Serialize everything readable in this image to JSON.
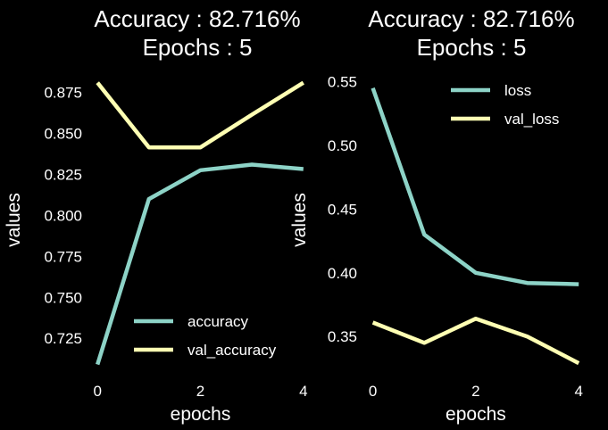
{
  "colors": {
    "background": "#000000",
    "text": "#ffffff",
    "series_teal": "#8dd3c7",
    "series_yellow": "#feffb3"
  },
  "chart_data": [
    {
      "type": "line",
      "title": "Accuracy : 82.716%",
      "subtitle": "Epochs : 5",
      "xlabel": "epochs",
      "ylabel": "values",
      "x": [
        0,
        1,
        2,
        3,
        4
      ],
      "xticks": [
        0,
        2,
        4
      ],
      "xticklabels": [
        "0",
        "2",
        "4"
      ],
      "yticks": [
        0.725,
        0.75,
        0.775,
        0.8,
        0.825,
        0.85,
        0.875
      ],
      "yticklabels": [
        "0.725",
        "0.750",
        "0.775",
        "0.800",
        "0.825",
        "0.850",
        "0.875"
      ],
      "xlim": [
        -0.05,
        4.05
      ],
      "ylim": [
        0.7055,
        0.889
      ],
      "grid": false,
      "legend_position": "lower-right",
      "series": [
        {
          "name": "accuracy",
          "color": "#8dd3c7",
          "values": [
            0.709,
            0.81,
            0.8276,
            0.831,
            0.8283
          ]
        },
        {
          "name": "val_accuracy",
          "color": "#feffb3",
          "values": [
            0.881,
            0.8415,
            0.8415,
            0.8615,
            0.881
          ]
        }
      ]
    },
    {
      "type": "line",
      "title": "Accuracy : 82.716%",
      "subtitle": "Epochs : 5",
      "xlabel": "epochs",
      "ylabel": "values",
      "x": [
        0,
        1,
        2,
        3,
        4
      ],
      "xticks": [
        0,
        2,
        4
      ],
      "xticklabels": [
        "0",
        "2",
        "4"
      ],
      "yticks": [
        0.35,
        0.4,
        0.45,
        0.5,
        0.55
      ],
      "yticklabels": [
        "0.35",
        "0.40",
        "0.45",
        "0.50",
        "0.55"
      ],
      "xlim": [
        -0.05,
        4.05
      ],
      "ylim": [
        0.3235,
        0.5595
      ],
      "grid": false,
      "legend_position": "upper-right",
      "series": [
        {
          "name": "loss",
          "color": "#8dd3c7",
          "values": [
            0.545,
            0.43,
            0.4,
            0.392,
            0.391
          ]
        },
        {
          "name": "val_loss",
          "color": "#feffb3",
          "values": [
            0.361,
            0.345,
            0.364,
            0.35,
            0.329
          ]
        }
      ]
    }
  ]
}
